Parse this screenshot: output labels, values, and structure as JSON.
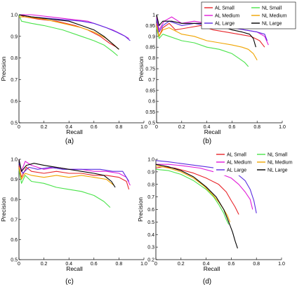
{
  "captions": [
    "(a)",
    "(b)",
    "(c)",
    "(d)"
  ],
  "chart_data": [
    {
      "type": "line",
      "panel": "(a)",
      "xlabel": "Recall",
      "ylabel": "Precision",
      "xlim": [
        0,
        1.0
      ],
      "ylim": [
        0.5,
        1.0
      ],
      "xticks": [
        "0",
        "0.2",
        "0.4",
        "0.6",
        "0.8",
        "1.0"
      ],
      "yticks": [
        "0.5",
        "0.6",
        "0.7",
        "0.8",
        "0.9",
        "1.0"
      ],
      "legend": false,
      "series": [
        {
          "name": "AL Small",
          "color": "#e8252a",
          "x": [
            0,
            0.05,
            0.15,
            0.3,
            0.45,
            0.55,
            0.65,
            0.72,
            0.78,
            0.8
          ],
          "y": [
            1.0,
            0.99,
            0.98,
            0.97,
            0.95,
            0.93,
            0.9,
            0.87,
            0.85,
            0.84
          ]
        },
        {
          "name": "AL Medium",
          "color": "#e019d8",
          "x": [
            0,
            0.1,
            0.25,
            0.4,
            0.55,
            0.65,
            0.75,
            0.82,
            0.88
          ],
          "y": [
            1.0,
            1.0,
            0.99,
            0.98,
            0.97,
            0.95,
            0.93,
            0.91,
            0.89
          ]
        },
        {
          "name": "AL Large",
          "color": "#5a2ce0",
          "x": [
            0,
            0.1,
            0.3,
            0.5,
            0.6,
            0.7,
            0.78,
            0.85,
            0.89
          ],
          "y": [
            1.0,
            0.99,
            0.98,
            0.97,
            0.96,
            0.94,
            0.92,
            0.9,
            0.88
          ]
        },
        {
          "name": "NL Small",
          "color": "#49e349",
          "x": [
            0,
            0.02,
            0.1,
            0.2,
            0.35,
            0.5,
            0.6,
            0.68,
            0.75,
            0.79
          ],
          "y": [
            1.0,
            0.97,
            0.96,
            0.95,
            0.93,
            0.9,
            0.88,
            0.86,
            0.83,
            0.81
          ]
        },
        {
          "name": "NL Medium",
          "color": "#f0a400",
          "x": [
            0,
            0.05,
            0.2,
            0.35,
            0.5,
            0.6,
            0.7,
            0.76,
            0.8
          ],
          "y": [
            0.99,
            0.99,
            0.98,
            0.96,
            0.94,
            0.92,
            0.89,
            0.86,
            0.84
          ]
        },
        {
          "name": "NL Large",
          "color": "#000000",
          "x": [
            0,
            0.1,
            0.25,
            0.4,
            0.5,
            0.6,
            0.68,
            0.74,
            0.8
          ],
          "y": [
            1.0,
            0.99,
            0.98,
            0.97,
            0.95,
            0.93,
            0.9,
            0.87,
            0.84
          ]
        }
      ]
    },
    {
      "type": "line",
      "panel": "(b)",
      "xlabel": "Recall",
      "ylabel": "Precision",
      "xlim": [
        0,
        1.0
      ],
      "ylim": [
        0.5,
        1.0
      ],
      "xticks": [
        "0",
        "0.2",
        "0.4",
        "0.6",
        "0.8",
        "1.0"
      ],
      "yticks": [
        "0.5",
        "0.55",
        "0.6",
        "0.65",
        "0.7",
        "0.75",
        "0.8",
        "0.85",
        "0.9",
        "0.95",
        "1"
      ],
      "legend": true,
      "legend_position": "top-right",
      "series": [
        {
          "name": "AL Small",
          "color": "#e8252a",
          "x": [
            0,
            0.02,
            0.05,
            0.1,
            0.15,
            0.25,
            0.35,
            0.45,
            0.55,
            0.65,
            0.75,
            0.82,
            0.86
          ],
          "y": [
            0.96,
            0.9,
            0.94,
            0.96,
            0.93,
            0.94,
            0.95,
            0.93,
            0.92,
            0.91,
            0.9,
            0.88,
            0.85
          ]
        },
        {
          "name": "AL Medium",
          "color": "#e019d8",
          "x": [
            0,
            0.02,
            0.06,
            0.12,
            0.2,
            0.3,
            0.4,
            0.5,
            0.6,
            0.7,
            0.8,
            0.86,
            0.89
          ],
          "y": [
            0.99,
            0.93,
            0.97,
            0.99,
            0.96,
            0.97,
            0.96,
            0.95,
            0.94,
            0.93,
            0.92,
            0.9,
            0.86
          ]
        },
        {
          "name": "AL Large",
          "color": "#5a2ce0",
          "x": [
            0,
            0.02,
            0.05,
            0.1,
            0.2,
            0.3,
            0.4,
            0.5,
            0.6,
            0.7,
            0.8,
            0.86,
            0.88
          ],
          "y": [
            0.98,
            0.92,
            0.95,
            0.97,
            0.95,
            0.96,
            0.95,
            0.95,
            0.94,
            0.93,
            0.92,
            0.91,
            0.88
          ]
        },
        {
          "name": "NL Small",
          "color": "#49e349",
          "x": [
            0,
            0.02,
            0.05,
            0.1,
            0.2,
            0.3,
            0.4,
            0.5,
            0.6,
            0.65,
            0.7,
            0.73
          ],
          "y": [
            0.94,
            0.89,
            0.91,
            0.9,
            0.88,
            0.87,
            0.85,
            0.84,
            0.82,
            0.8,
            0.78,
            0.76
          ]
        },
        {
          "name": "NL Medium",
          "color": "#f0a400",
          "x": [
            0,
            0.02,
            0.05,
            0.1,
            0.2,
            0.3,
            0.4,
            0.5,
            0.6,
            0.68,
            0.73,
            0.77,
            0.8
          ],
          "y": [
            0.95,
            0.9,
            0.93,
            0.94,
            0.91,
            0.9,
            0.88,
            0.87,
            0.86,
            0.85,
            0.84,
            0.82,
            0.79
          ]
        },
        {
          "name": "NL Large",
          "color": "#000000",
          "x": [
            0,
            0.02,
            0.05,
            0.12,
            0.2,
            0.3,
            0.4,
            0.5,
            0.6,
            0.68,
            0.74,
            0.77,
            0.79
          ],
          "y": [
            1.0,
            0.95,
            0.97,
            0.97,
            0.96,
            0.96,
            0.96,
            0.95,
            0.93,
            0.92,
            0.91,
            0.89,
            0.85
          ]
        }
      ]
    },
    {
      "type": "line",
      "panel": "(c)",
      "xlabel": "Recall",
      "ylabel": "Precision",
      "xlim": [
        0,
        1.0
      ],
      "ylim": [
        0.5,
        1.0
      ],
      "xticks": [
        "0",
        "0.2",
        "0.4",
        "0.6",
        "0.8",
        "1.0"
      ],
      "yticks": [
        "0.5",
        "0.6",
        "0.7",
        "0.8",
        "0.9",
        "1.0"
      ],
      "legend": false,
      "series": [
        {
          "name": "AL Small",
          "color": "#e8252a",
          "x": [
            0,
            0.02,
            0.06,
            0.1,
            0.2,
            0.3,
            0.4,
            0.5,
            0.6,
            0.7,
            0.8,
            0.86,
            0.88
          ],
          "y": [
            0.97,
            0.91,
            0.96,
            0.94,
            0.93,
            0.94,
            0.93,
            0.93,
            0.92,
            0.92,
            0.91,
            0.89,
            0.85
          ]
        },
        {
          "name": "AL Medium",
          "color": "#e019d8",
          "x": [
            0,
            0.02,
            0.05,
            0.1,
            0.2,
            0.3,
            0.4,
            0.5,
            0.6,
            0.7,
            0.8,
            0.86,
            0.89
          ],
          "y": [
            1.0,
            0.94,
            0.99,
            0.97,
            0.95,
            0.96,
            0.95,
            0.95,
            0.94,
            0.94,
            0.93,
            0.91,
            0.87
          ]
        },
        {
          "name": "AL Large",
          "color": "#5a2ce0",
          "x": [
            0,
            0.03,
            0.08,
            0.15,
            0.25,
            0.35,
            0.45,
            0.55,
            0.65,
            0.75,
            0.83,
            0.88
          ],
          "y": [
            0.98,
            0.93,
            0.96,
            0.95,
            0.96,
            0.95,
            0.95,
            0.95,
            0.95,
            0.94,
            0.94,
            0.89
          ]
        },
        {
          "name": "NL Small",
          "color": "#49e349",
          "x": [
            0,
            0.02,
            0.05,
            0.1,
            0.2,
            0.3,
            0.4,
            0.5,
            0.6,
            0.68,
            0.73
          ],
          "y": [
            0.95,
            0.88,
            0.92,
            0.89,
            0.88,
            0.86,
            0.85,
            0.84,
            0.82,
            0.79,
            0.76
          ]
        },
        {
          "name": "NL Medium",
          "color": "#f0a400",
          "x": [
            0,
            0.02,
            0.05,
            0.1,
            0.2,
            0.3,
            0.4,
            0.5,
            0.6,
            0.7,
            0.76
          ],
          "y": [
            0.96,
            0.9,
            0.93,
            0.92,
            0.91,
            0.92,
            0.91,
            0.92,
            0.91,
            0.9,
            0.87
          ]
        },
        {
          "name": "NL Large",
          "color": "#000000",
          "x": [
            0,
            0.02,
            0.06,
            0.12,
            0.2,
            0.3,
            0.4,
            0.5,
            0.6,
            0.68,
            0.74,
            0.77
          ],
          "y": [
            1.0,
            0.94,
            0.97,
            0.98,
            0.97,
            0.96,
            0.95,
            0.94,
            0.93,
            0.92,
            0.89,
            0.86
          ]
        }
      ]
    },
    {
      "type": "line",
      "panel": "(d)",
      "xlabel": "Recall",
      "ylabel": "Precision",
      "xlim": [
        0,
        1.0
      ],
      "ylim": [
        0.2,
        1.0
      ],
      "xticks": [
        "0",
        "0.2",
        "0.4",
        "0.6",
        "0.8",
        "1.0"
      ],
      "yticks": [
        "0.2",
        "0.3",
        "0.4",
        "0.5",
        "0.6",
        "0.7",
        "0.8",
        "0.9",
        "1.0"
      ],
      "legend": true,
      "legend_position": "top-right",
      "series": [
        {
          "name": "AL Small",
          "color": "#e8252a",
          "x": [
            0,
            0.05,
            0.15,
            0.3,
            0.4,
            0.5,
            0.56,
            0.6,
            0.63,
            0.66
          ],
          "y": [
            0.93,
            0.94,
            0.93,
            0.89,
            0.85,
            0.8,
            0.74,
            0.67,
            0.62,
            0.56
          ]
        },
        {
          "name": "AL Medium",
          "color": "#e019d8",
          "x": [
            0,
            0.1,
            0.2,
            0.35,
            0.5,
            0.6,
            0.66,
            0.71,
            0.75,
            0.77
          ],
          "y": [
            0.96,
            0.96,
            0.95,
            0.93,
            0.89,
            0.85,
            0.8,
            0.74,
            0.68,
            0.6
          ]
        },
        {
          "name": "AL Large",
          "color": "#5a2ce0",
          "x": [
            0,
            0.1,
            0.25,
            0.4,
            0.55,
            0.65,
            0.71,
            0.75,
            0.78,
            0.8
          ],
          "y": [
            0.99,
            0.98,
            0.96,
            0.94,
            0.92,
            0.88,
            0.83,
            0.76,
            0.67,
            0.57
          ]
        },
        {
          "name": "NL Small",
          "color": "#49e349",
          "x": [
            0,
            0.1,
            0.2,
            0.3,
            0.4,
            0.46,
            0.5,
            0.54,
            0.56,
            0.58
          ],
          "y": [
            0.92,
            0.91,
            0.88,
            0.83,
            0.76,
            0.7,
            0.64,
            0.57,
            0.52,
            0.48
          ]
        },
        {
          "name": "NL Medium",
          "color": "#f0a400",
          "x": [
            0,
            0.1,
            0.2,
            0.3,
            0.38,
            0.45,
            0.5,
            0.54,
            0.57,
            0.59
          ],
          "y": [
            0.95,
            0.93,
            0.9,
            0.85,
            0.79,
            0.72,
            0.66,
            0.6,
            0.55,
            0.5
          ]
        },
        {
          "name": "NL Large",
          "color": "#000000",
          "x": [
            0,
            0.1,
            0.2,
            0.3,
            0.4,
            0.48,
            0.54,
            0.58,
            0.61,
            0.63,
            0.65
          ],
          "y": [
            0.96,
            0.94,
            0.91,
            0.86,
            0.78,
            0.7,
            0.6,
            0.5,
            0.42,
            0.35,
            0.29
          ]
        }
      ]
    }
  ]
}
